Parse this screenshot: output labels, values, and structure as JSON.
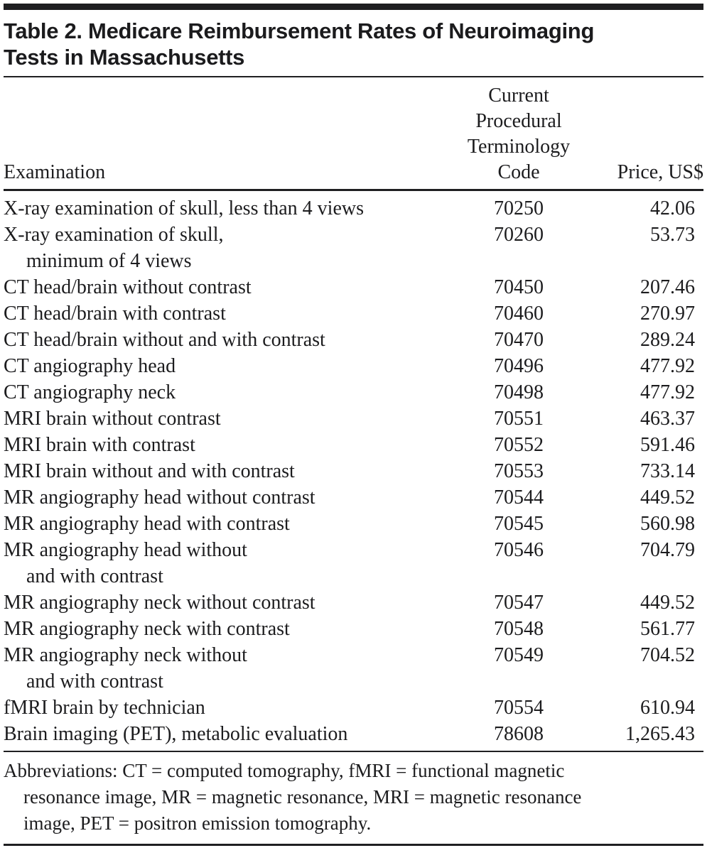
{
  "colors": {
    "background": "#ffffff",
    "text": "#1c1c1e",
    "rule": "#1f1f21"
  },
  "table": {
    "title_lines": [
      "Table 2. Medicare Reimbursement Rates of Neuroimaging",
      "Tests in Massachusetts"
    ],
    "header": {
      "examination": "Examination",
      "cpt_lines": [
        "Current",
        "Procedural",
        "Terminology",
        "Code"
      ],
      "price": "Price, US$"
    },
    "rows": [
      {
        "exam_lines": [
          "X-ray examination of skull, less than 4 views"
        ],
        "code": "70250",
        "price": "42.06"
      },
      {
        "exam_lines": [
          "X-ray examination of skull,",
          "minimum of 4 views"
        ],
        "code": "70260",
        "price": "53.73"
      },
      {
        "exam_lines": [
          "CT head/brain without contrast"
        ],
        "code": "70450",
        "price": "207.46"
      },
      {
        "exam_lines": [
          "CT head/brain with contrast"
        ],
        "code": "70460",
        "price": "270.97"
      },
      {
        "exam_lines": [
          "CT head/brain without and with contrast"
        ],
        "code": "70470",
        "price": "289.24"
      },
      {
        "exam_lines": [
          "CT angiography head"
        ],
        "code": "70496",
        "price": "477.92"
      },
      {
        "exam_lines": [
          "CT angiography neck"
        ],
        "code": "70498",
        "price": "477.92"
      },
      {
        "exam_lines": [
          "MRI brain without contrast"
        ],
        "code": "70551",
        "price": "463.37"
      },
      {
        "exam_lines": [
          "MRI brain with contrast"
        ],
        "code": "70552",
        "price": "591.46"
      },
      {
        "exam_lines": [
          "MRI brain without and with contrast"
        ],
        "code": "70553",
        "price": "733.14"
      },
      {
        "exam_lines": [
          "MR angiography head without contrast"
        ],
        "code": "70544",
        "price": "449.52"
      },
      {
        "exam_lines": [
          "MR angiography head with contrast"
        ],
        "code": "70545",
        "price": "560.98"
      },
      {
        "exam_lines": [
          "MR angiography head without",
          "and with contrast"
        ],
        "code": "70546",
        "price": "704.79"
      },
      {
        "exam_lines": [
          "MR angiography neck without contrast"
        ],
        "code": "70547",
        "price": "449.52"
      },
      {
        "exam_lines": [
          "MR angiography neck with contrast"
        ],
        "code": "70548",
        "price": "561.77"
      },
      {
        "exam_lines": [
          "MR angiography neck without",
          "and with contrast"
        ],
        "code": "70549",
        "price": "704.52"
      },
      {
        "exam_lines": [
          "fMRI brain by technician"
        ],
        "code": "70554",
        "price": "610.94"
      },
      {
        "exam_lines": [
          "Brain imaging (PET), metabolic evaluation"
        ],
        "code": "78608",
        "price": "1,265.43"
      }
    ],
    "footnote_lines": [
      "Abbreviations: CT = computed tomography, fMRI = functional magnetic",
      "resonance image, MR = magnetic resonance, MRI = magnetic resonance",
      "image, PET = positron emission tomography."
    ]
  }
}
